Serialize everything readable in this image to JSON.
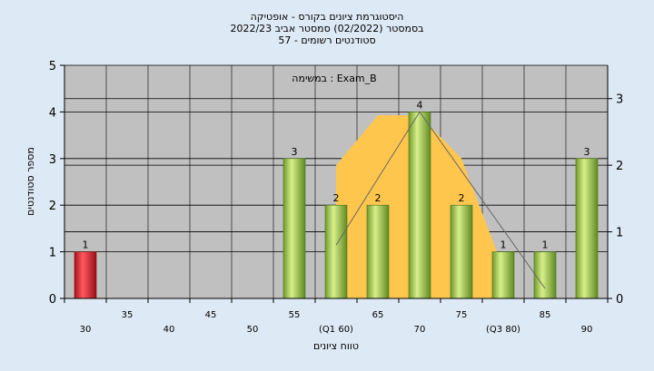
{
  "chart_data": {
    "type": "bar",
    "title_lines": [
      "היסטוגרמת ציונים בקורס - אופטיקה",
      "בסמסטר  (02/2022)  סמסטר אביב 2022/23",
      "סטודנטים רשומים - 57"
    ],
    "annotation": "במשימה : Exam_B",
    "xlabel": "טווח ציונים",
    "ylabel": "מספר סטודנטים",
    "categories": [
      "30",
      "35",
      "40",
      "45",
      "50",
      "55",
      "(Q1 60)",
      "65",
      "70",
      "75",
      "(Q3 80)",
      "85",
      "90"
    ],
    "values": [
      1,
      0,
      0,
      0,
      0,
      3,
      2,
      2,
      4,
      2,
      1,
      1,
      3
    ],
    "data_labels": [
      "1",
      "",
      "",
      "",
      "",
      "3",
      "2",
      "2",
      "4",
      "2",
      "1",
      "1",
      "3"
    ],
    "highlight_index": 0,
    "ylim": [
      0,
      5
    ],
    "y_ticks": [
      "0",
      "1",
      "2",
      "3",
      "4",
      "5"
    ],
    "y2lim": [
      0,
      3.5
    ],
    "y2_ticks": [
      "0",
      "1",
      "2",
      "3"
    ],
    "grid": true,
    "distribution_area": {
      "x": [
        "(Q1 60)",
        "65",
        "70",
        "75",
        "(Q3 80)"
      ],
      "values": [
        2.0,
        2.75,
        2.75,
        2.1,
        0.45
      ]
    },
    "distribution_line": {
      "x": [
        "(Q1 60)",
        "70",
        "85"
      ],
      "values": [
        0.8,
        2.8,
        0.15
      ]
    },
    "colors": {
      "background": "#dde9f5",
      "plot_area": "#c0c0c0",
      "bar_normal": "#9cc04a",
      "bar_highlight": "#e0272f",
      "area_fill": "#ffc64e",
      "line": "#666666"
    }
  }
}
